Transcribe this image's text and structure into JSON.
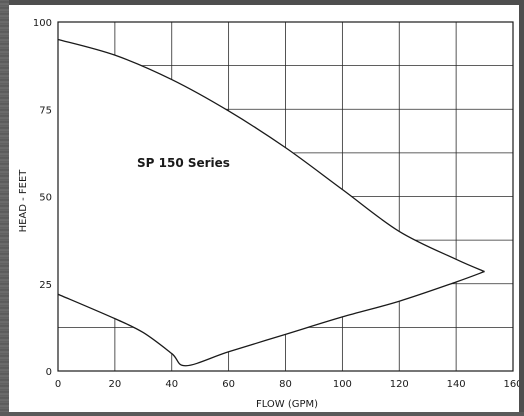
{
  "chart_data": {
    "type": "area",
    "title": "SP 150 Series",
    "xlabel": "FLOW (GPM)",
    "ylabel": "HEAD - FEET",
    "xlim": [
      0,
      160
    ],
    "ylim": [
      0,
      100
    ],
    "xticks": [
      0,
      20,
      40,
      60,
      80,
      100,
      120,
      140,
      160
    ],
    "yticks": [
      0,
      25,
      50,
      75,
      100
    ],
    "grid": true,
    "series": [
      {
        "values": [
          [
            0,
            95
          ],
          [
            20,
            90.5
          ],
          [
            40,
            83.5
          ],
          [
            60,
            74.5
          ],
          [
            80,
            64
          ],
          [
            100,
            52
          ],
          [
            120,
            40
          ],
          [
            140,
            32
          ],
          [
            150,
            28.5
          ]
        ]
      },
      {
        "values": [
          [
            0,
            22
          ],
          [
            20,
            15
          ],
          [
            30,
            11
          ],
          [
            40,
            5
          ],
          [
            45,
            1.5
          ],
          [
            60,
            5.5
          ],
          [
            80,
            10.5
          ],
          [
            100,
            15.5
          ],
          [
            120,
            20
          ],
          [
            140,
            25.5
          ],
          [
            150,
            28.5
          ]
        ]
      }
    ]
  }
}
